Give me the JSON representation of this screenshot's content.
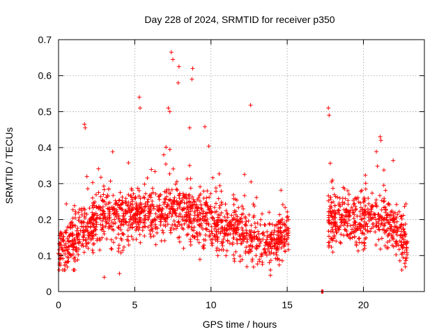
{
  "chart_data": {
    "type": "scatter",
    "title": "Day 228 of 2024, SRMTID for receiver p350",
    "xlabel": "GPS time / hours",
    "ylabel": "SRMTID / TECUs",
    "xlim": [
      0,
      24
    ],
    "ylim": [
      0,
      0.7
    ],
    "xticks": [
      0,
      5,
      10,
      15,
      20
    ],
    "xtick_labels": [
      "0",
      "5",
      "10",
      "15",
      "20"
    ],
    "yticks": [
      0,
      0.1,
      0.2,
      0.3,
      0.4,
      0.5,
      0.6,
      0.7
    ],
    "ytick_labels": [
      "0",
      "0.1",
      "0.2",
      "0.3",
      "0.4",
      "0.5",
      "0.6",
      "0.7"
    ],
    "grid": true,
    "marker": "+",
    "color": "#ff0000",
    "series": [
      {
        "name": "SRMTID",
        "envelope": {
          "segments": [
            {
              "x_start": 0.0,
              "x_end": 15.1
            },
            {
              "x_start": 17.7,
              "x_end": 22.9
            }
          ],
          "median_profile": [
            [
              0.0,
              0.13
            ],
            [
              1.0,
              0.14
            ],
            [
              1.8,
              0.18
            ],
            [
              2.5,
              0.2
            ],
            [
              3.3,
              0.22
            ],
            [
              4.0,
              0.2
            ],
            [
              5.0,
              0.22
            ],
            [
              6.0,
              0.21
            ],
            [
              7.0,
              0.23
            ],
            [
              8.0,
              0.22
            ],
            [
              9.0,
              0.2
            ],
            [
              10.0,
              0.19
            ],
            [
              11.0,
              0.18
            ],
            [
              12.0,
              0.17
            ],
            [
              13.0,
              0.14
            ],
            [
              14.0,
              0.14
            ],
            [
              15.1,
              0.15
            ],
            [
              17.7,
              0.2
            ],
            [
              18.5,
              0.2
            ],
            [
              19.5,
              0.19
            ],
            [
              20.5,
              0.21
            ],
            [
              21.5,
              0.2
            ],
            [
              22.3,
              0.17
            ],
            [
              22.9,
              0.13
            ]
          ]
        },
        "notable_points": [
          {
            "x": 7.4,
            "y": 0.665
          },
          {
            "x": 7.5,
            "y": 0.645
          },
          {
            "x": 7.9,
            "y": 0.625
          },
          {
            "x": 7.85,
            "y": 0.58
          },
          {
            "x": 8.8,
            "y": 0.62
          },
          {
            "x": 8.75,
            "y": 0.59
          },
          {
            "x": 5.3,
            "y": 0.54
          },
          {
            "x": 5.35,
            "y": 0.51
          },
          {
            "x": 7.2,
            "y": 0.51
          },
          {
            "x": 7.3,
            "y": 0.5
          },
          {
            "x": 12.6,
            "y": 0.518
          },
          {
            "x": 17.7,
            "y": 0.51
          },
          {
            "x": 17.75,
            "y": 0.49
          },
          {
            "x": 1.7,
            "y": 0.465
          },
          {
            "x": 1.75,
            "y": 0.455
          },
          {
            "x": 8.6,
            "y": 0.455
          },
          {
            "x": 9.6,
            "y": 0.458
          },
          {
            "x": 21.1,
            "y": 0.43
          },
          {
            "x": 21.15,
            "y": 0.42
          },
          {
            "x": 3.0,
            "y": 0.04
          },
          {
            "x": 4.0,
            "y": 0.05
          },
          {
            "x": 13.9,
            "y": 0.045
          },
          {
            "x": 17.3,
            "y": 0.0
          },
          {
            "x": 17.25,
            "y": 0.0
          },
          {
            "x": 17.35,
            "y": 0.0
          }
        ]
      }
    ]
  }
}
